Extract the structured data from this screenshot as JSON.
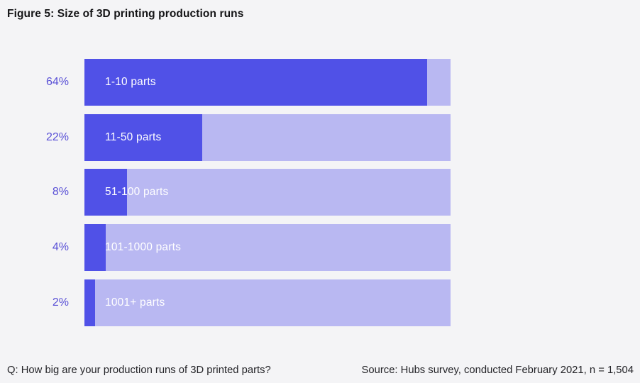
{
  "title": "Figure 5: Size of 3D printing production runs",
  "chart_data": {
    "type": "bar",
    "orientation": "horizontal",
    "categories": [
      "1-10 parts",
      "11-50 parts",
      "51-100 parts",
      "101-1000 parts",
      "1001+ parts"
    ],
    "values": [
      64,
      22,
      8,
      4,
      2
    ],
    "value_labels": [
      "64%",
      "22%",
      "8%",
      "4%",
      "2%"
    ],
    "title": "Figure 5: Size of 3D printing production runs",
    "xlabel": "",
    "ylabel": "",
    "xlim": [
      0,
      68.4
    ],
    "grid": false,
    "legend": false
  },
  "footer": {
    "question": "Q: How big are your production runs of 3D printed parts?",
    "source": "Source: Hubs survey, conducted February 2021, n = 1,504"
  },
  "colors": {
    "background": "#f4f4f6",
    "bar_fill": "#5051e7",
    "bar_track": "#b9b8f2",
    "percent_label": "#5950d6",
    "bar_text": "#ffffff",
    "title_text": "#131315",
    "footer_text": "#242428"
  }
}
